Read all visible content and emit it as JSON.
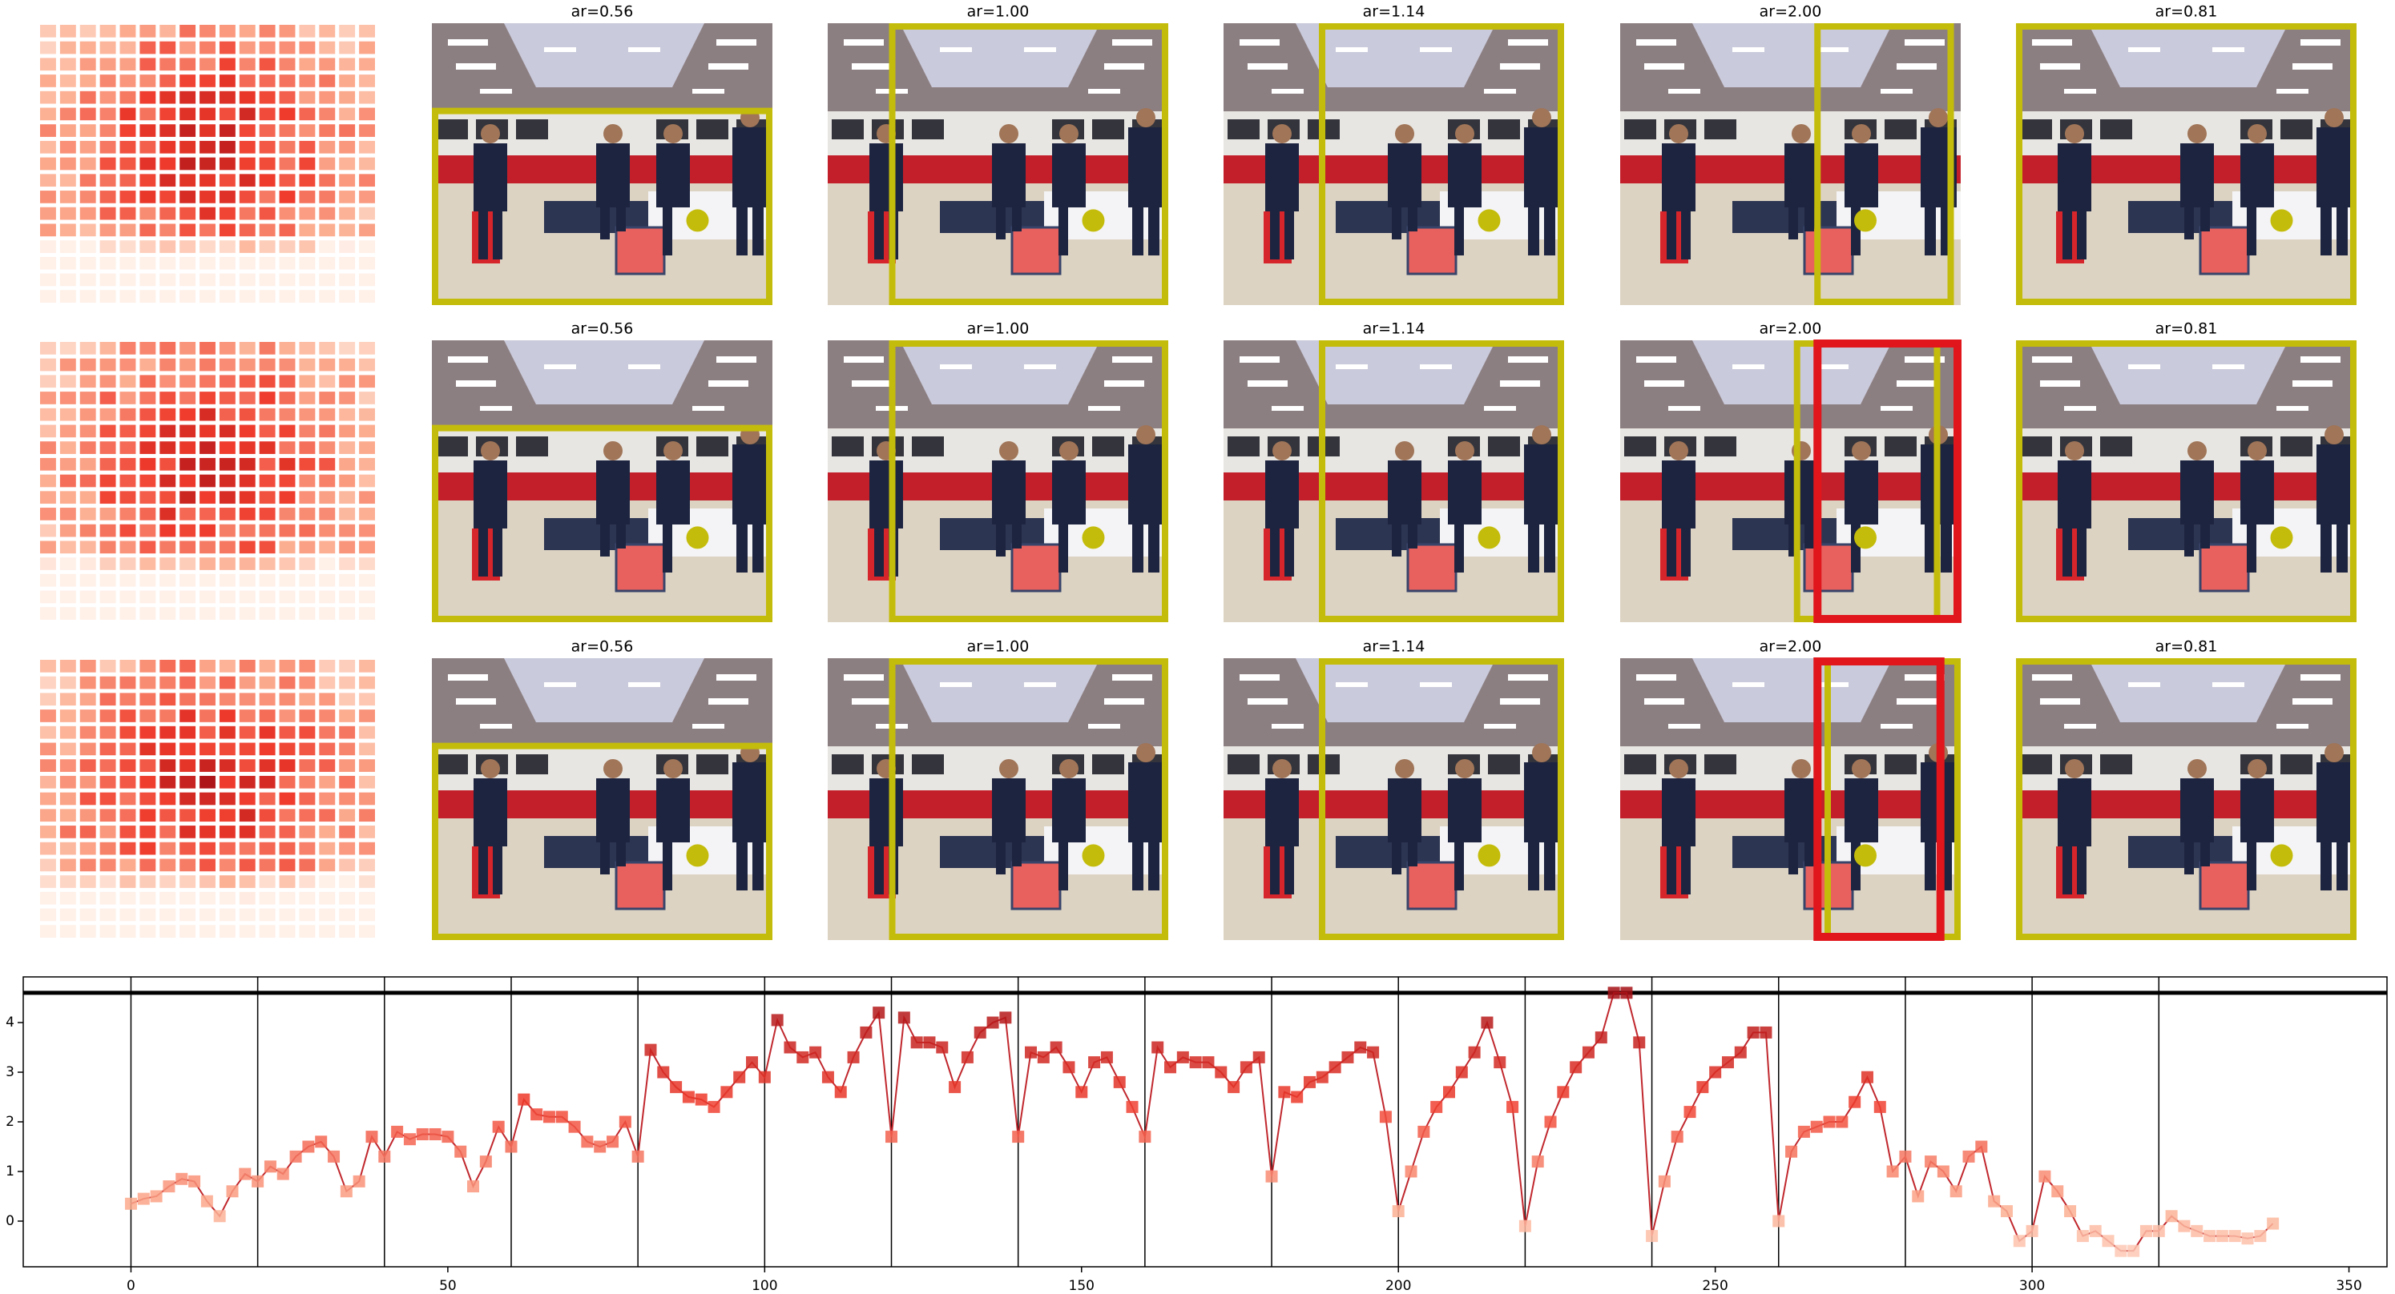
{
  "grid": {
    "rows": [
      {
        "titles": [
          "ar=0.56",
          "ar=1.00",
          "ar=1.14",
          "ar=2.00",
          "ar=0.81"
        ]
      },
      {
        "titles": [
          "ar=0.56",
          "ar=1.00",
          "ar=1.14",
          "ar=2.00",
          "ar=0.81"
        ]
      },
      {
        "titles": [
          "ar=0.56",
          "ar=1.00",
          "ar=1.14",
          "ar=2.00",
          "ar=0.81"
        ]
      }
    ]
  },
  "chart_data": {
    "type": "line",
    "color": "#c0272d",
    "x": [
      0,
      2,
      4,
      6,
      8,
      10,
      12,
      14,
      16,
      18,
      20,
      22,
      24,
      26,
      28,
      30,
      32,
      34,
      36,
      38,
      40,
      42,
      44,
      46,
      48,
      50,
      52,
      54,
      56,
      58,
      60,
      62,
      64,
      66,
      68,
      70,
      72,
      74,
      76,
      78,
      80,
      82,
      84,
      86,
      88,
      90,
      92,
      94,
      96,
      98,
      100,
      102,
      104,
      106,
      108,
      110,
      112,
      114,
      116,
      118,
      120,
      122,
      124,
      126,
      128,
      130,
      132,
      134,
      136,
      138,
      140,
      142,
      144,
      146,
      148,
      150,
      152,
      154,
      156,
      158,
      160,
      162,
      164,
      166,
      168,
      170,
      172,
      174,
      176,
      178,
      180,
      182,
      184,
      186,
      188,
      190,
      192,
      194,
      196,
      198,
      200,
      202,
      204,
      206,
      208,
      210,
      212,
      214,
      216,
      218,
      220,
      222,
      224,
      226,
      228,
      230,
      232,
      234,
      236,
      238,
      240,
      242,
      244,
      246,
      248,
      250,
      252,
      254,
      256,
      258,
      260,
      262,
      264,
      266,
      268,
      270,
      272,
      274,
      276,
      278,
      280,
      282,
      284,
      286,
      288,
      290,
      292,
      294,
      296,
      298,
      300,
      302,
      304,
      306,
      308,
      310,
      312,
      314,
      316,
      318,
      320,
      322,
      324,
      326,
      328,
      330,
      332,
      334,
      336,
      338
    ],
    "values": [
      0.35,
      0.45,
      0.5,
      0.7,
      0.85,
      0.8,
      0.4,
      0.1,
      0.6,
      0.95,
      0.8,
      1.1,
      0.95,
      1.3,
      1.5,
      1.6,
      1.3,
      0.6,
      0.8,
      1.7,
      1.3,
      1.8,
      1.65,
      1.75,
      1.75,
      1.7,
      1.4,
      0.7,
      1.2,
      1.9,
      1.5,
      2.45,
      2.15,
      2.1,
      2.1,
      1.9,
      1.6,
      1.5,
      1.6,
      2.0,
      1.3,
      3.45,
      3.0,
      2.7,
      2.5,
      2.45,
      2.3,
      2.6,
      2.9,
      3.2,
      2.9,
      4.05,
      3.5,
      3.3,
      3.4,
      2.9,
      2.6,
      3.3,
      3.8,
      4.2,
      1.7,
      4.1,
      3.6,
      3.6,
      3.5,
      2.7,
      3.3,
      3.8,
      4.0,
      4.1,
      1.7,
      3.4,
      3.3,
      3.5,
      3.1,
      2.6,
      3.2,
      3.3,
      2.8,
      2.3,
      1.7,
      3.5,
      3.1,
      3.3,
      3.2,
      3.2,
      3.0,
      2.7,
      3.1,
      3.3,
      0.9,
      2.6,
      2.5,
      2.8,
      2.9,
      3.1,
      3.3,
      3.5,
      3.4,
      2.1,
      0.2,
      1.0,
      1.8,
      2.3,
      2.6,
      3.0,
      3.4,
      4.0,
      3.2,
      2.3,
      -0.1,
      1.2,
      2.0,
      2.6,
      3.1,
      3.4,
      3.7,
      4.6,
      4.6,
      3.6,
      -0.3,
      0.8,
      1.7,
      2.2,
      2.7,
      3.0,
      3.2,
      3.4,
      3.8,
      3.8,
      0.0,
      1.4,
      1.8,
      1.9,
      2.0,
      2.0,
      2.4,
      2.9,
      2.3,
      1.0,
      1.3,
      0.5,
      1.2,
      1.0,
      0.6,
      1.3,
      1.5,
      0.4,
      0.2,
      -0.4,
      -0.2,
      0.9,
      0.6,
      0.2,
      -0.3,
      -0.2,
      -0.4,
      -0.6,
      -0.6,
      -0.2,
      -0.2,
      0.1,
      -0.1,
      -0.2,
      -0.3,
      -0.3,
      -0.3,
      -0.35,
      -0.3,
      -0.05
    ],
    "xlim": [
      -17,
      356
    ],
    "ylim": [
      -0.92,
      4.92
    ],
    "xticks": [
      0,
      50,
      100,
      150,
      200,
      250,
      300,
      350
    ],
    "yticks": [
      0,
      1,
      2,
      3,
      4
    ],
    "hline": 4.6,
    "vlines": [
      0,
      20,
      40,
      60,
      80,
      100,
      120,
      140,
      160,
      180,
      200,
      220,
      240,
      260,
      280,
      300,
      320
    ]
  }
}
